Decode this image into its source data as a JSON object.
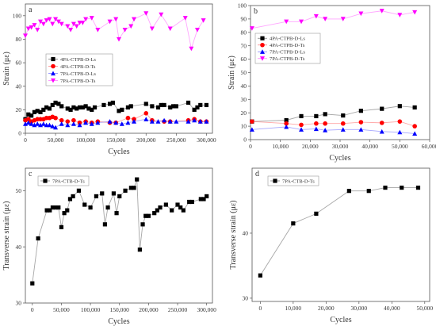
{
  "chart_data": [
    {
      "id": "a",
      "type": "line",
      "panel_label": "a",
      "xlabel": "Cycles",
      "ylabel": "Strain (με)",
      "xlim": [
        0,
        310000
      ],
      "ylim": [
        0,
        110
      ],
      "xticks": [
        0,
        50000,
        100000,
        150000,
        200000,
        250000,
        300000
      ],
      "xtick_labels": [
        "0",
        "50,000",
        "100,000",
        "150,000",
        "200,000",
        "250,000",
        "300,000"
      ],
      "yticks": [
        0,
        20,
        40,
        60,
        80,
        100
      ],
      "ytick_labels": [
        "0",
        "20",
        "40",
        "60",
        "80",
        "100"
      ],
      "grid": false,
      "legend_position": "middle-left",
      "series": [
        {
          "name": "4PA-CTPB-D-Ls",
          "color": "#000000",
          "marker": "square",
          "x": [
            0,
            5000,
            10000,
            15000,
            20000,
            25000,
            30000,
            35000,
            40000,
            45000,
            50000,
            55000,
            60000,
            70000,
            75000,
            80000,
            85000,
            90000,
            95000,
            100000,
            105000,
            110000,
            115000,
            130000,
            140000,
            145000,
            155000,
            160000,
            170000,
            175000,
            200000,
            210000,
            220000,
            225000,
            230000,
            240000,
            245000,
            250000,
            270000,
            280000,
            285000,
            290000,
            300000
          ],
          "y": [
            12,
            16,
            15,
            18,
            19,
            18,
            20,
            22,
            21,
            24,
            26,
            25,
            23,
            21,
            20,
            22,
            21,
            22,
            22,
            23,
            21,
            20,
            22,
            24,
            25,
            26,
            19,
            20,
            22,
            23,
            25,
            23,
            22,
            24,
            24,
            22,
            23,
            23,
            26,
            20,
            22,
            24,
            24
          ]
        },
        {
          "name": "4PA-CTPB-D-Ts",
          "color": "#ff0000",
          "marker": "circle",
          "x": [
            0,
            5000,
            10000,
            15000,
            20000,
            25000,
            30000,
            35000,
            40000,
            45000,
            50000,
            60000,
            70000,
            80000,
            90000,
            100000,
            110000,
            120000,
            140000,
            150000,
            170000,
            180000,
            200000,
            210000,
            230000,
            240000,
            270000,
            280000,
            290000,
            300000
          ],
          "y": [
            11,
            12,
            10,
            11,
            12,
            12,
            12,
            13,
            13,
            14,
            13,
            11,
            10,
            11,
            9,
            10,
            9,
            10,
            9,
            9,
            13,
            12,
            17,
            11,
            10,
            10,
            11,
            12,
            10,
            10
          ]
        },
        {
          "name": "7PA-CTPB-D-Ls",
          "color": "#0000ff",
          "marker": "triangle-up",
          "x": [
            0,
            5000,
            10000,
            15000,
            20000,
            25000,
            30000,
            35000,
            40000,
            45000,
            50000,
            60000,
            70000,
            80000,
            90000,
            100000,
            110000,
            120000,
            140000,
            150000,
            160000,
            170000,
            180000,
            200000,
            210000,
            220000,
            230000,
            240000,
            250000,
            270000,
            280000,
            290000,
            300000
          ],
          "y": [
            8,
            9,
            8,
            7,
            8,
            7,
            8,
            7,
            7,
            6,
            5,
            8,
            7,
            8,
            7,
            9,
            8,
            9,
            10,
            9,
            8,
            9,
            10,
            12,
            10,
            10,
            11,
            10,
            10,
            10,
            11,
            10,
            10
          ]
        },
        {
          "name": "7PA-CTPB-D-Ts",
          "color": "#ff00ff",
          "marker": "triangle-down",
          "x": [
            0,
            5000,
            10000,
            15000,
            20000,
            25000,
            30000,
            35000,
            40000,
            45000,
            50000,
            55000,
            60000,
            70000,
            75000,
            80000,
            85000,
            90000,
            95000,
            100000,
            110000,
            120000,
            140000,
            150000,
            155000,
            165000,
            175000,
            180000,
            200000,
            210000,
            225000,
            240000,
            265000,
            275000,
            285000,
            295000
          ],
          "y": [
            83,
            89,
            90,
            92,
            88,
            95,
            93,
            96,
            97,
            93,
            97,
            95,
            93,
            91,
            88,
            93,
            91,
            94,
            94,
            97,
            98,
            88,
            95,
            97,
            80,
            88,
            91,
            97,
            102,
            89,
            101,
            89,
            98,
            72,
            88,
            96
          ]
        }
      ]
    },
    {
      "id": "b",
      "type": "line",
      "panel_label": "b",
      "xlabel": "Cycles",
      "ylabel": "Strain (με)",
      "xlim": [
        0,
        60000
      ],
      "ylim": [
        0,
        100
      ],
      "xticks": [
        0,
        10000,
        20000,
        30000,
        40000,
        50000,
        60000
      ],
      "xtick_labels": [
        "0",
        "10,000",
        "20,000",
        "30,000",
        "40,000",
        "50,000",
        "60,000"
      ],
      "yticks": [
        0,
        10,
        20,
        30,
        40,
        50,
        60,
        70,
        80,
        90,
        100
      ],
      "ytick_labels": [
        "0",
        "10",
        "20",
        "30",
        "40",
        "50",
        "60",
        "70",
        "80",
        "90",
        "100"
      ],
      "grid": false,
      "legend_position": "top-left",
      "series": [
        {
          "name": "4PA-CTPB-D-Ls",
          "color": "#000000",
          "marker": "square",
          "x": [
            500,
            12000,
            17000,
            22000,
            25000,
            31000,
            37000,
            44000,
            50000,
            55000
          ],
          "y": [
            13.5,
            14.5,
            17.5,
            17.5,
            19,
            18,
            21.5,
            23,
            25,
            24
          ]
        },
        {
          "name": "4PA-CTPB-D-Ts",
          "color": "#ff0000",
          "marker": "circle",
          "x": [
            500,
            12000,
            17000,
            22000,
            25000,
            31000,
            37000,
            44000,
            50000,
            55000
          ],
          "y": [
            13.5,
            12,
            11,
            12,
            12,
            12,
            13,
            12.5,
            13.5,
            10
          ]
        },
        {
          "name": "7PA-CTPB-D-Ls",
          "color": "#0000ff",
          "marker": "triangle-up",
          "x": [
            500,
            12000,
            17000,
            22000,
            25000,
            31000,
            37000,
            44000,
            50000,
            55000
          ],
          "y": [
            7.5,
            9.5,
            7.5,
            8,
            7,
            7.5,
            7.5,
            6,
            5.5,
            4.5
          ]
        },
        {
          "name": "7PA-CTPB-D-Ts",
          "color": "#ff00ff",
          "marker": "triangle-down",
          "x": [
            500,
            12000,
            17000,
            22000,
            25000,
            31000,
            37000,
            44000,
            50000,
            55000
          ],
          "y": [
            83,
            88,
            88,
            92,
            90,
            90,
            94,
            96,
            93,
            95
          ]
        }
      ]
    },
    {
      "id": "c",
      "type": "line",
      "panel_label": "c",
      "xlabel": "Cycles",
      "ylabel": "Transverse strain (με)",
      "xlim": [
        -12000,
        310000
      ],
      "ylim": [
        30,
        54
      ],
      "xticks": [
        0,
        50000,
        100000,
        150000,
        200000,
        250000,
        300000
      ],
      "xtick_labels": [
        "0",
        "50,000",
        "100,000",
        "150,000",
        "200,000",
        "250,000",
        "300,000"
      ],
      "yticks": [
        30,
        40,
        50
      ],
      "ytick_labels": [
        "30",
        "40",
        "50"
      ],
      "grid": false,
      "legend_position": "top-left",
      "series": [
        {
          "name": "7PA-CTB-D-Ts",
          "color": "#000000",
          "marker": "square",
          "x": [
            0,
            10000,
            25000,
            30000,
            35000,
            40000,
            45000,
            50000,
            55000,
            60000,
            65000,
            70000,
            80000,
            90000,
            100000,
            110000,
            120000,
            125000,
            130000,
            140000,
            145000,
            150000,
            160000,
            170000,
            175000,
            180000,
            185000,
            190000,
            195000,
            200000,
            210000,
            215000,
            220000,
            230000,
            240000,
            250000,
            255000,
            260000,
            270000,
            275000,
            290000,
            295000,
            300000
          ],
          "y": [
            33.5,
            41.5,
            46.5,
            46.5,
            47,
            47,
            47,
            43.5,
            46,
            46.5,
            48.5,
            49,
            50,
            47.5,
            47,
            49,
            49.5,
            44,
            47,
            49.5,
            46,
            49,
            50,
            50.5,
            50.5,
            52,
            39.5,
            44,
            45.5,
            45.5,
            46,
            46.5,
            47,
            47.5,
            46.5,
            47.5,
            47,
            46.5,
            48,
            48,
            48.5,
            48.5,
            49
          ]
        }
      ]
    },
    {
      "id": "d",
      "type": "line",
      "panel_label": "d",
      "xlabel": "Cycles",
      "ylabel": "Transverse strain (με)",
      "xlim": [
        -2500,
        51500
      ],
      "ylim": [
        29.5,
        50
      ],
      "xticks": [
        0,
        10000,
        20000,
        30000,
        40000,
        50000
      ],
      "xtick_labels": [
        "0",
        "10,000",
        "20,000",
        "30,000",
        "40,000",
        "50,000"
      ],
      "yticks": [
        30,
        40
      ],
      "ytick_labels": [
        "30",
        "40"
      ],
      "grid": false,
      "legend_position": "top-left",
      "series": [
        {
          "name": "7PA-CTB-D-Ts",
          "color": "#000000",
          "marker": "square",
          "x": [
            0,
            10000,
            17000,
            27000,
            33000,
            38000,
            43000,
            48000
          ],
          "y": [
            33.5,
            41.5,
            43,
            46.5,
            46.5,
            47,
            47,
            47
          ]
        }
      ]
    }
  ]
}
